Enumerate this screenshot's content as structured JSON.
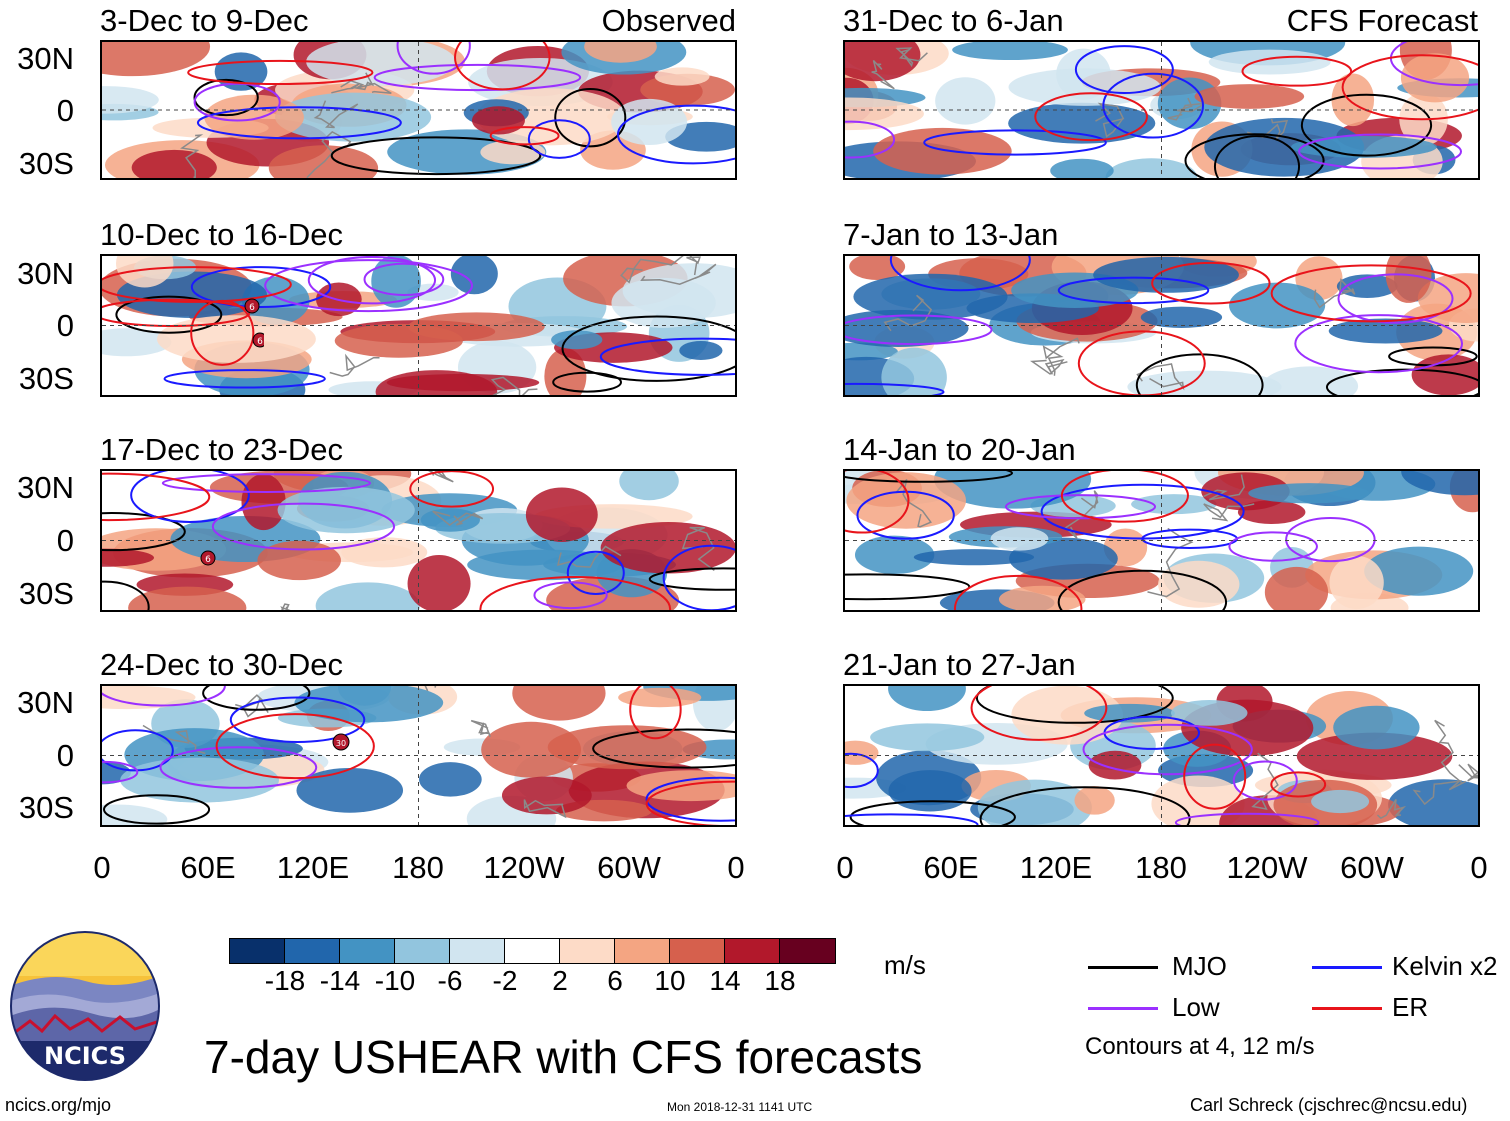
{
  "panels": [
    {
      "title": "3-Dec to 9-Dec",
      "corner": "Observed"
    },
    {
      "title": "31-Dec to 6-Jan",
      "corner": "CFS Forecast"
    },
    {
      "title": "10-Dec to 16-Dec",
      "corner": ""
    },
    {
      "title": "7-Jan to 13-Jan",
      "corner": ""
    },
    {
      "title": "17-Dec to 23-Dec",
      "corner": ""
    },
    {
      "title": "14-Jan to 20-Jan",
      "corner": ""
    },
    {
      "title": "24-Dec to 30-Dec",
      "corner": ""
    },
    {
      "title": "21-Jan to 27-Jan",
      "corner": ""
    }
  ],
  "lat_ticks": [
    "30N",
    "0",
    "30S"
  ],
  "lon_ticks": [
    "0",
    "60E",
    "120E",
    "180",
    "120W",
    "60W",
    "0"
  ],
  "colorbar": {
    "colors": [
      "#08306b",
      "#2166ac",
      "#4393c3",
      "#92c5de",
      "#d1e5f0",
      "#ffffff",
      "#fddbc7",
      "#f4a582",
      "#d6604d",
      "#b2182b",
      "#67001f"
    ],
    "ticks": [
      "-18",
      "-14",
      "-10",
      "-6",
      "-2",
      "2",
      "6",
      "10",
      "14",
      "18"
    ],
    "units": "m/s"
  },
  "legend": {
    "items": [
      {
        "label": "MJO",
        "color": "#000000"
      },
      {
        "label": "Kelvin x2",
        "color": "#1a1aff"
      },
      {
        "label": "Low",
        "color": "#9b30ff"
      },
      {
        "label": "ER",
        "color": "#e8141b"
      }
    ],
    "note": "Contours at 4, 12 m/s"
  },
  "logo_text": "NCICS",
  "main_title": "7-day USHEAR with CFS forecasts",
  "footer": {
    "left": "ncics.org/mjo",
    "center": "Mon 2018-12-31 1141 UTC",
    "right": "Carl Schreck (cjschrec@ncsu.edu)"
  },
  "storm_markers": [
    "6",
    "6",
    "6",
    "30"
  ]
}
